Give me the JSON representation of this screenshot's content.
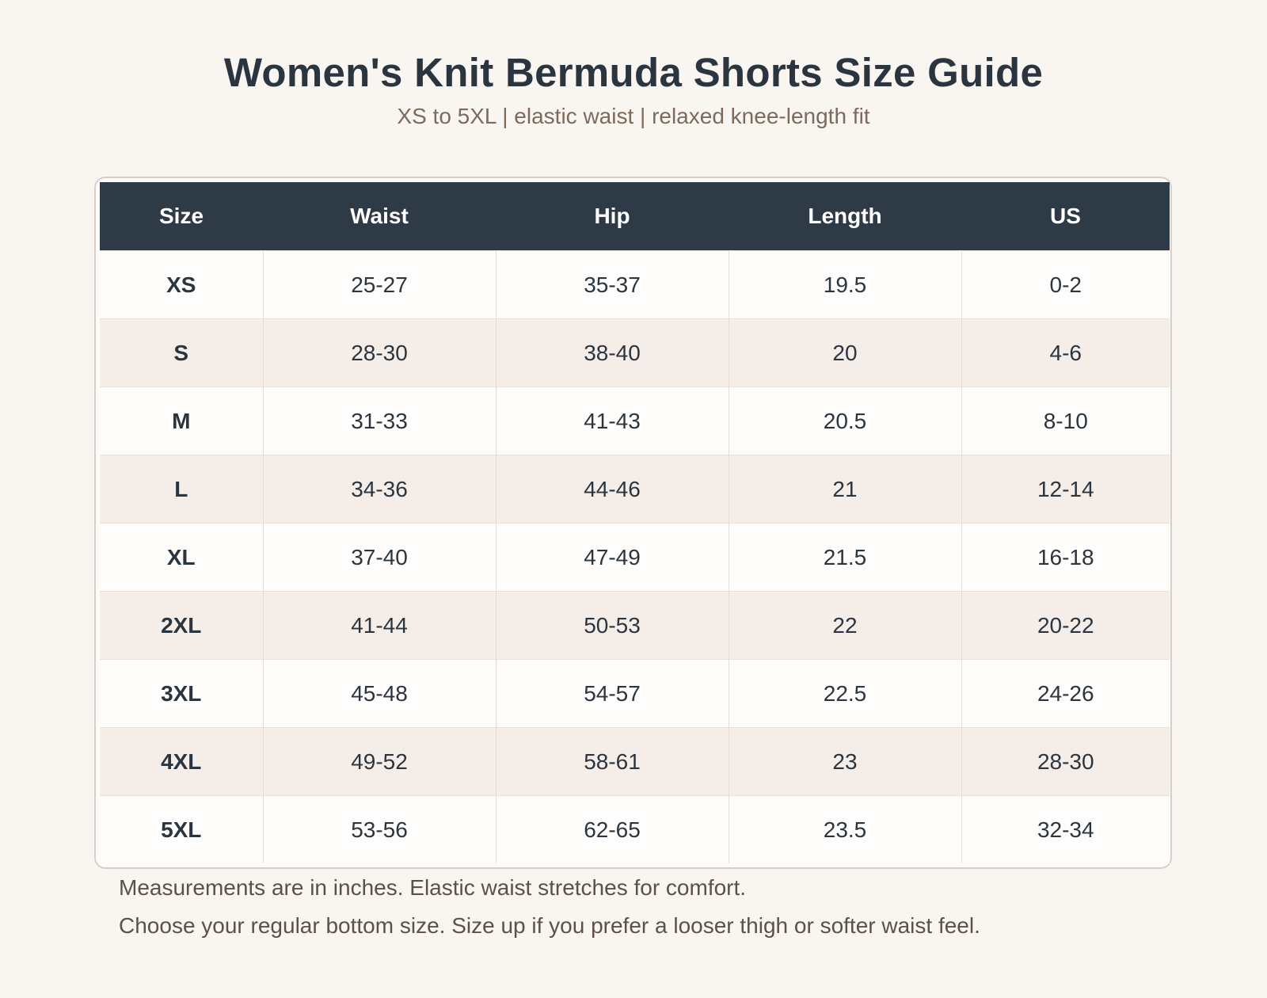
{
  "header": {
    "title": "Women's Knit Bermuda Shorts Size Guide",
    "subtitle": "XS to 5XL | elastic waist | relaxed knee-length fit"
  },
  "table": {
    "columns": [
      "Size",
      "Waist",
      "Hip",
      "Length",
      "US"
    ],
    "rows": [
      [
        "XS",
        "25-27",
        "35-37",
        "19.5",
        "0-2"
      ],
      [
        "S",
        "28-30",
        "38-40",
        "20",
        "4-6"
      ],
      [
        "M",
        "31-33",
        "41-43",
        "20.5",
        "8-10"
      ],
      [
        "L",
        "34-36",
        "44-46",
        "21",
        "12-14"
      ],
      [
        "XL",
        "37-40",
        "47-49",
        "21.5",
        "16-18"
      ],
      [
        "2XL",
        "41-44",
        "50-53",
        "22",
        "20-22"
      ],
      [
        "3XL",
        "45-48",
        "54-57",
        "22.5",
        "24-26"
      ],
      [
        "4XL",
        "49-52",
        "58-61",
        "23",
        "28-30"
      ],
      [
        "5XL",
        "53-56",
        "62-65",
        "23.5",
        "32-34"
      ]
    ]
  },
  "notes": [
    "Measurements are in inches. Elastic waist stretches for comfort.",
    "Choose your regular bottom size. Size up if you prefer a looser thigh or softer waist feel."
  ],
  "colors": {
    "header_bg": "#2e3a45",
    "stripe": "#f5eee8",
    "accent_text": "#7d6a5c"
  }
}
